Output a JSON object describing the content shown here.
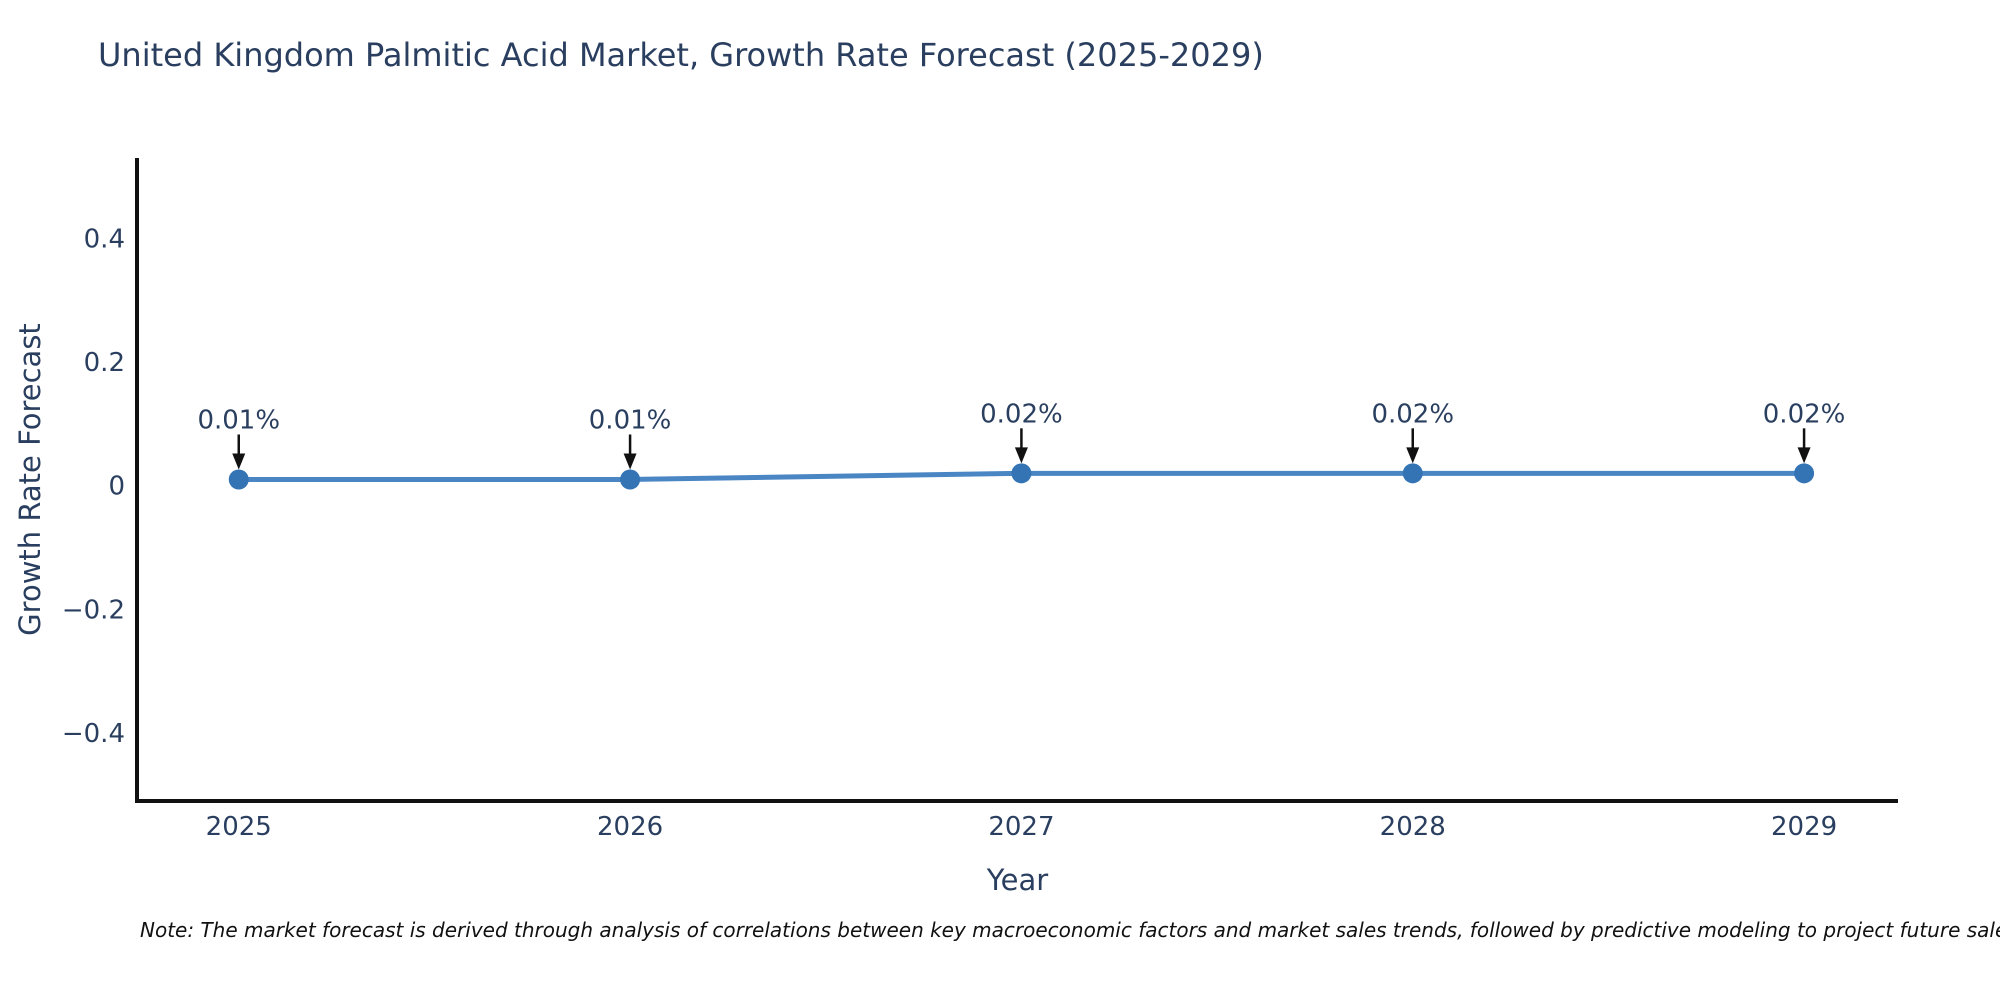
{
  "page": {
    "background": "#ffffff",
    "note": "Note: The market forecast is derived through analysis of correlations between key macroeconomic factors and market sales trends, followed by predictive modeling to project future sales"
  },
  "chart_data": {
    "type": "line",
    "title": "United Kingdom Palmitic Acid Market, Growth Rate Forecast (2025-2029)",
    "xlabel": "Year",
    "ylabel": "Growth Rate Forecast",
    "x": [
      2025,
      2026,
      2027,
      2028,
      2029
    ],
    "values": [
      0.01,
      0.01,
      0.02,
      0.02,
      0.02
    ],
    "point_labels": [
      "0.01%",
      "0.01%",
      "0.02%",
      "0.02%",
      "0.02%"
    ],
    "xticks": [
      2025,
      2026,
      2027,
      2028,
      2029
    ],
    "yticks": [
      0.4,
      0.2,
      0,
      -0.2,
      -0.4
    ],
    "ytick_labels": [
      "0.4",
      "0.2",
      "0",
      "−0.2",
      "−0.4"
    ],
    "xlim": [
      2024.74,
      2029.24
    ],
    "ylim": [
      -0.51,
      0.53
    ],
    "grid": false,
    "legend": "none",
    "annotation_style": "arrow-down",
    "colors": {
      "line": "#4a86c4",
      "marker": "#3474b4",
      "text": "#2a3f5f",
      "axis": "#111111",
      "arrow": "#111111",
      "note_text": "#111111"
    }
  }
}
